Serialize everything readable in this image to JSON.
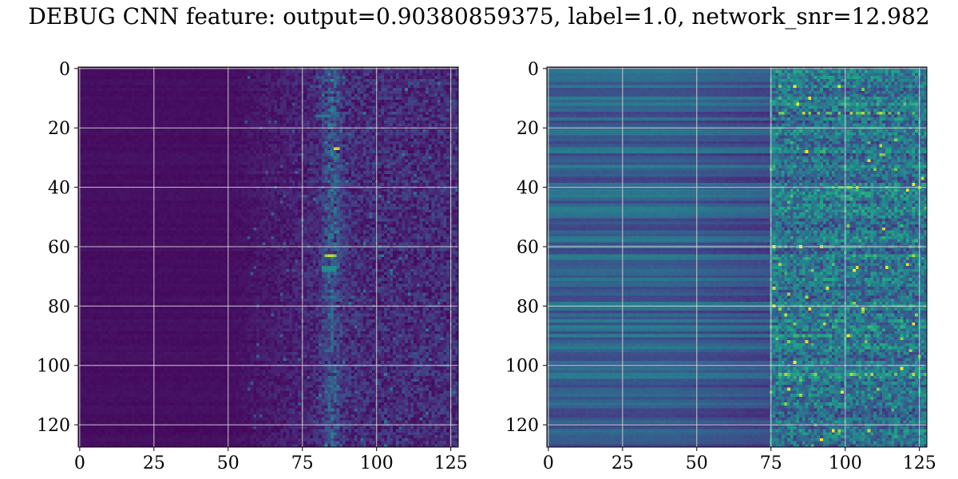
{
  "title": "DEBUG CNN feature: output=0.90380859375, label=1.0, network_snr=12.982",
  "colors": {
    "grid": "#d9d9d9",
    "axis": "#000000",
    "viridis_low": "#440154",
    "viridis_mid": "#21918c",
    "viridis_high": "#fde725"
  },
  "chart_data": [
    {
      "type": "heatmap",
      "colormap": "viridis",
      "grid": true,
      "rows": 128,
      "cols": 128,
      "xlim": [
        0,
        127
      ],
      "ylim": [
        127,
        0
      ],
      "xticks": [
        0,
        25,
        50,
        75,
        100,
        125
      ],
      "yticks": [
        0,
        20,
        40,
        60,
        80,
        100,
        120
      ],
      "xtick_labels": [
        "0",
        "25",
        "50",
        "75",
        "100",
        "125"
      ],
      "ytick_labels": [
        "0",
        "20",
        "40",
        "60",
        "80",
        "100",
        "120"
      ],
      "value_range": [
        0,
        1
      ],
      "description_of_values": "mostly near 0 (dark purple) for columns 0-50, increasing noise toward the right; bright band centered near column 85; brightest spots near (row 27, col 86) and (row 63, col 84)"
    },
    {
      "type": "heatmap",
      "colormap": "viridis",
      "grid": true,
      "rows": 128,
      "cols": 128,
      "xlim": [
        0,
        127
      ],
      "ylim": [
        127,
        0
      ],
      "xticks": [
        0,
        25,
        50,
        75,
        100,
        125
      ],
      "yticks": [
        0,
        20,
        40,
        60,
        80,
        100,
        120
      ],
      "xtick_labels": [
        "0",
        "25",
        "50",
        "75",
        "100",
        "125"
      ],
      "ytick_labels": [
        "0",
        "20",
        "40",
        "60",
        "80",
        "100",
        "120"
      ],
      "value_range": [
        0,
        1
      ],
      "description_of_values": "horizontal striped pattern, values roughly 0.2-0.5 on the left, noisy 0.2-0.9 texture for columns 75-127 with bright points near rows 15, 40, 103"
    }
  ]
}
